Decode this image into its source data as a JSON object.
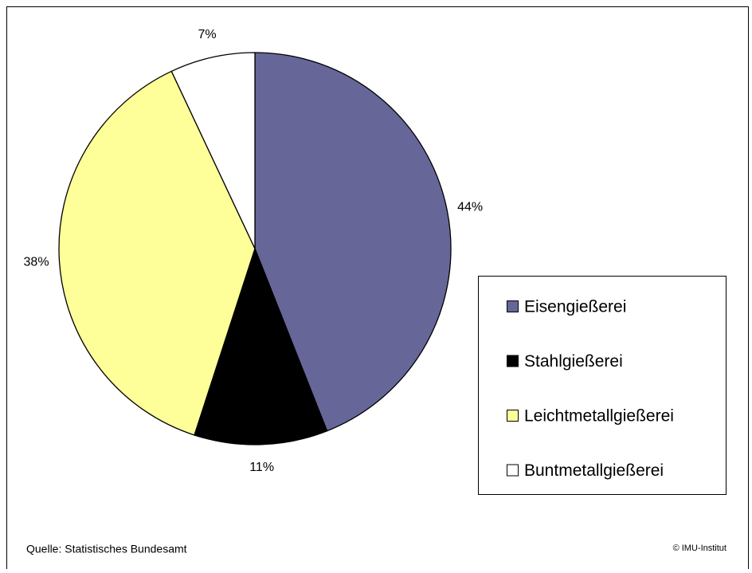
{
  "chart_data": {
    "type": "pie",
    "categories": [
      "Eisengießerei",
      "Stahlgießerei",
      "Leichtmetallgießerei",
      "Buntmetallgießerei"
    ],
    "values": [
      44,
      11,
      38,
      7
    ],
    "value_labels": [
      "44%",
      "11%",
      "38%",
      "7%"
    ],
    "colors": [
      "#666699",
      "#000000",
      "#ffff99",
      "#ffffff"
    ],
    "legend": "right",
    "source": "Quelle: Statistisches Bundesamt",
    "copyright": "© IMU-Institut"
  }
}
